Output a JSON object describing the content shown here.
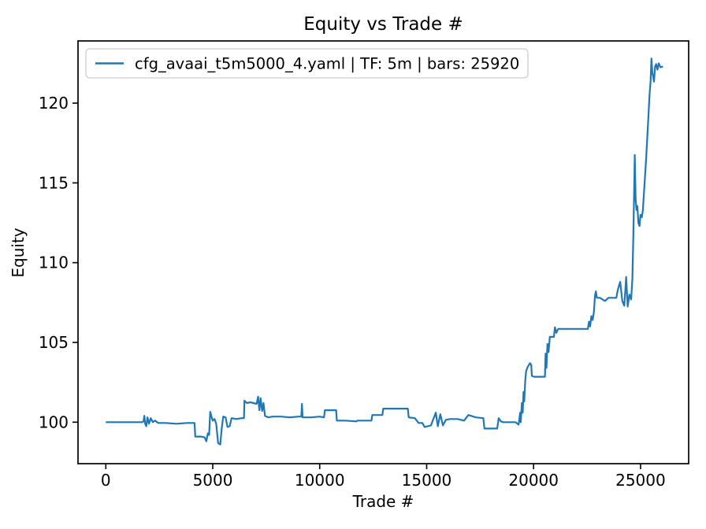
{
  "chart_data": {
    "type": "line",
    "title": "Equity vs Trade #",
    "xlabel": "Trade #",
    "ylabel": "Equity",
    "xlim": [
      -1300,
      27250
    ],
    "ylim": [
      97.4,
      123.9
    ],
    "xticks": [
      0,
      5000,
      10000,
      15000,
      20000,
      25000
    ],
    "yticks": [
      100,
      105,
      110,
      115,
      120
    ],
    "grid": false,
    "line_color": "#1f77b4",
    "legend": {
      "position": "upper left",
      "entries": [
        {
          "label": "cfg_avaai_t5m5000_4.yaml | TF: 5m | bars: 25920",
          "color": "#1f77b4"
        }
      ]
    },
    "series": [
      {
        "name": "cfg_avaai_t5m5000_4.yaml | TF: 5m | bars: 25920",
        "color": "#1f77b4",
        "x_is": "trade_number",
        "y_is": "equity",
        "points": [
          [
            0,
            100
          ],
          [
            500,
            100
          ],
          [
            1000,
            100
          ],
          [
            1500,
            100
          ],
          [
            1700,
            100
          ],
          [
            1760,
            100.05
          ],
          [
            1800,
            100.4
          ],
          [
            1840,
            99.9
          ],
          [
            1890,
            99.75
          ],
          [
            1950,
            100.3
          ],
          [
            2020,
            99.9
          ],
          [
            2100,
            100.25
          ],
          [
            2200,
            100.0
          ],
          [
            2300,
            100.1
          ],
          [
            2450,
            99.95
          ],
          [
            2800,
            99.95
          ],
          [
            3300,
            99.9
          ],
          [
            3800,
            99.95
          ],
          [
            4150,
            99.95
          ],
          [
            4180,
            99.1
          ],
          [
            4450,
            99.1
          ],
          [
            4620,
            99.05
          ],
          [
            4700,
            98.8
          ],
          [
            4770,
            99.3
          ],
          [
            4830,
            99.2
          ],
          [
            4880,
            100.65
          ],
          [
            4940,
            100.35
          ],
          [
            5000,
            100.1
          ],
          [
            5080,
            100.2
          ],
          [
            5160,
            99.9
          ],
          [
            5250,
            98.7
          ],
          [
            5350,
            98.6
          ],
          [
            5420,
            99.6
          ],
          [
            5490,
            100.35
          ],
          [
            5600,
            100.3
          ],
          [
            5690,
            99.7
          ],
          [
            5790,
            99.75
          ],
          [
            5880,
            100.25
          ],
          [
            6100,
            100.2
          ],
          [
            6350,
            100.25
          ],
          [
            6460,
            100.25
          ],
          [
            6480,
            101.35
          ],
          [
            6600,
            101.2
          ],
          [
            6750,
            101.25
          ],
          [
            6900,
            101.2
          ],
          [
            7050,
            101.15
          ],
          [
            7120,
            101.6
          ],
          [
            7180,
            100.75
          ],
          [
            7240,
            101.5
          ],
          [
            7310,
            100.7
          ],
          [
            7370,
            101.2
          ],
          [
            7440,
            100.4
          ],
          [
            7600,
            100.3
          ],
          [
            7800,
            100.35
          ],
          [
            8200,
            100.35
          ],
          [
            8600,
            100.3
          ],
          [
            9000,
            100.35
          ],
          [
            9140,
            100.35
          ],
          [
            9170,
            101.15
          ],
          [
            9200,
            100.3
          ],
          [
            9600,
            100.3
          ],
          [
            10000,
            100.35
          ],
          [
            10200,
            100.3
          ],
          [
            10240,
            100.75
          ],
          [
            10500,
            100.75
          ],
          [
            10770,
            100.75
          ],
          [
            10800,
            100.1
          ],
          [
            11200,
            100.1
          ],
          [
            11720,
            100.05
          ],
          [
            11760,
            100.1
          ],
          [
            12200,
            100.1
          ],
          [
            12420,
            100.1
          ],
          [
            12460,
            100.45
          ],
          [
            12750,
            100.45
          ],
          [
            12930,
            100.45
          ],
          [
            12970,
            100.85
          ],
          [
            13400,
            100.85
          ],
          [
            13800,
            100.85
          ],
          [
            14120,
            100.85
          ],
          [
            14160,
            100.3
          ],
          [
            14450,
            100.25
          ],
          [
            14620,
            99.95
          ],
          [
            14800,
            99.95
          ],
          [
            14900,
            99.7
          ],
          [
            15050,
            99.75
          ],
          [
            15200,
            99.8
          ],
          [
            15430,
            100.6
          ],
          [
            15520,
            99.75
          ],
          [
            15640,
            100.5
          ],
          [
            15760,
            99.8
          ],
          [
            15900,
            100.15
          ],
          [
            16100,
            100.2
          ],
          [
            16450,
            100.2
          ],
          [
            16750,
            100.1
          ],
          [
            16950,
            100.45
          ],
          [
            17300,
            100.3
          ],
          [
            17650,
            100.25
          ],
          [
            17700,
            99.6
          ],
          [
            18000,
            99.6
          ],
          [
            18300,
            99.6
          ],
          [
            18370,
            100.25
          ],
          [
            18470,
            100.05
          ],
          [
            18580,
            100.0
          ],
          [
            18900,
            100.0
          ],
          [
            19150,
            100.0
          ],
          [
            19300,
            99.85
          ],
          [
            19370,
            100.6
          ],
          [
            19400,
            100.0
          ],
          [
            19450,
            101.2
          ],
          [
            19490,
            100.6
          ],
          [
            19530,
            101.9
          ],
          [
            19560,
            101.3
          ],
          [
            19610,
            102.6
          ],
          [
            19650,
            103.2
          ],
          [
            19720,
            103.45
          ],
          [
            19830,
            103.7
          ],
          [
            19890,
            103.6
          ],
          [
            19920,
            102.9
          ],
          [
            20030,
            102.85
          ],
          [
            20300,
            102.85
          ],
          [
            20530,
            102.85
          ],
          [
            20560,
            104.3
          ],
          [
            20600,
            103.4
          ],
          [
            20650,
            104.9
          ],
          [
            20700,
            104.4
          ],
          [
            20760,
            105.35
          ],
          [
            20950,
            105.35
          ],
          [
            21000,
            105.95
          ],
          [
            21060,
            105.6
          ],
          [
            21150,
            105.85
          ],
          [
            21500,
            105.85
          ],
          [
            21900,
            105.85
          ],
          [
            22250,
            105.85
          ],
          [
            22540,
            105.85
          ],
          [
            22590,
            106.3
          ],
          [
            22640,
            106.0
          ],
          [
            22700,
            106.65
          ],
          [
            22760,
            106.4
          ],
          [
            22820,
            106.9
          ],
          [
            22870,
            107.9
          ],
          [
            22910,
            108.2
          ],
          [
            22960,
            107.8
          ],
          [
            23100,
            107.8
          ],
          [
            23340,
            107.6
          ],
          [
            23500,
            107.8
          ],
          [
            23870,
            107.8
          ],
          [
            23940,
            108.3
          ],
          [
            24050,
            108.8
          ],
          [
            24150,
            107.6
          ],
          [
            24240,
            107.3
          ],
          [
            24330,
            109.1
          ],
          [
            24400,
            107.25
          ],
          [
            24480,
            108.0
          ],
          [
            24560,
            107.7
          ],
          [
            24620,
            109.0
          ],
          [
            24660,
            111.5
          ],
          [
            24700,
            114.5
          ],
          [
            24730,
            116.75
          ],
          [
            24770,
            114.0
          ],
          [
            24810,
            113.3
          ],
          [
            24850,
            113.55
          ],
          [
            24900,
            112.5
          ],
          [
            24950,
            112.3
          ],
          [
            25000,
            113.0
          ],
          [
            25060,
            112.85
          ],
          [
            25110,
            113.3
          ],
          [
            25180,
            114.8
          ],
          [
            25260,
            116.5
          ],
          [
            25340,
            118.5
          ],
          [
            25420,
            120.5
          ],
          [
            25470,
            121.4
          ],
          [
            25510,
            122.8
          ],
          [
            25550,
            121.9
          ],
          [
            25590,
            121.7
          ],
          [
            25630,
            121.35
          ],
          [
            25680,
            122.3
          ],
          [
            25730,
            122.45
          ],
          [
            25790,
            122.1
          ],
          [
            25850,
            122.5
          ],
          [
            25930,
            122.25
          ],
          [
            26050,
            122.3
          ]
        ]
      }
    ]
  }
}
